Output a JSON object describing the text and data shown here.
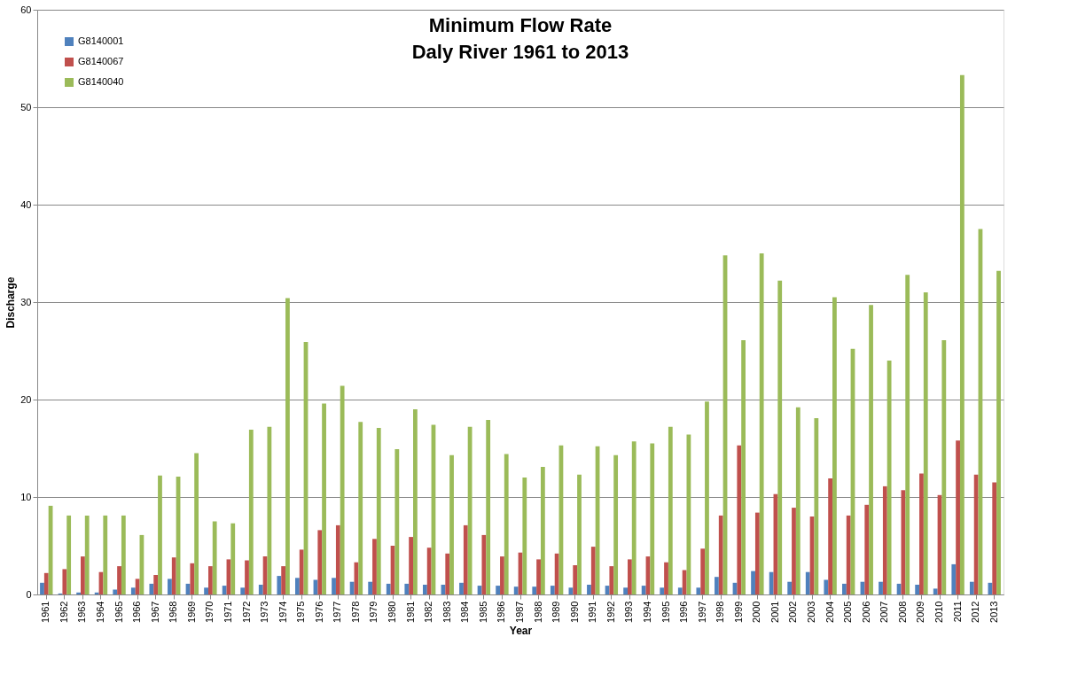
{
  "chart_data": {
    "type": "bar",
    "title": "Minimum Flow Rate\nDaly River 1961 to 2013",
    "xlabel": "Year",
    "ylabel": "Discharge",
    "categories": [
      "1961",
      "1962",
      "1963",
      "1964",
      "1965",
      "1966",
      "1967",
      "1968",
      "1969",
      "1970",
      "1971",
      "1972",
      "1973",
      "1974",
      "1975",
      "1976",
      "1977",
      "1978",
      "1979",
      "1980",
      "1981",
      "1982",
      "1983",
      "1984",
      "1985",
      "1986",
      "1987",
      "1988",
      "1989",
      "1990",
      "1991",
      "1992",
      "1993",
      "1994",
      "1995",
      "1996",
      "1997",
      "1998",
      "1999",
      "2000",
      "2001",
      "2002",
      "2003",
      "2004",
      "2005",
      "2006",
      "2007",
      "2008",
      "2009",
      "2010",
      "2011",
      "2012",
      "2013"
    ],
    "series": [
      {
        "name": "G8140001",
        "color": "#4f81bd",
        "values": [
          1.2,
          0.1,
          0.2,
          0.2,
          0.5,
          0.7,
          1.1,
          1.6,
          1.1,
          0.7,
          0.9,
          0.7,
          1.0,
          1.9,
          1.7,
          1.5,
          1.7,
          1.3,
          1.3,
          1.1,
          1.1,
          1.0,
          1.0,
          1.2,
          0.9,
          0.9,
          0.8,
          0.8,
          0.9,
          0.7,
          1.0,
          0.9,
          0.7,
          0.9,
          0.7,
          0.7,
          0.7,
          1.8,
          1.2,
          2.4,
          2.3,
          1.3,
          2.3,
          1.5,
          1.1,
          1.3,
          1.3,
          1.1,
          1.0,
          0.6,
          3.1,
          1.3,
          1.2
        ]
      },
      {
        "name": "G8140067",
        "color": "#c0504d",
        "values": [
          2.2,
          2.6,
          3.9,
          2.3,
          2.9,
          1.6,
          2.0,
          3.8,
          3.2,
          2.9,
          3.6,
          3.5,
          3.9,
          2.9,
          4.6,
          6.6,
          7.1,
          3.3,
          5.7,
          5.0,
          5.9,
          4.8,
          4.2,
          7.1,
          6.1,
          3.9,
          4.3,
          3.6,
          4.2,
          3.0,
          4.9,
          2.9,
          3.6,
          3.9,
          3.3,
          2.5,
          4.7,
          8.1,
          15.3,
          8.4,
          10.3,
          8.9,
          8.0,
          11.9,
          8.1,
          9.2,
          11.1,
          10.7,
          12.4,
          10.2,
          15.8,
          12.3,
          11.5
        ]
      },
      {
        "name": "G8140040",
        "color": "#9bbb59",
        "values": [
          9.1,
          8.1,
          8.1,
          8.1,
          8.1,
          6.1,
          12.2,
          12.1,
          14.5,
          7.5,
          7.3,
          16.9,
          17.2,
          30.4,
          25.9,
          19.6,
          21.4,
          17.7,
          17.1,
          14.9,
          19.0,
          17.4,
          14.3,
          17.2,
          17.9,
          14.4,
          12.0,
          13.1,
          15.3,
          12.3,
          15.2,
          14.3,
          15.7,
          15.5,
          17.2,
          16.4,
          19.8,
          34.8,
          26.1,
          35.0,
          32.2,
          19.2,
          18.1,
          30.5,
          25.2,
          29.7,
          24.0,
          32.8,
          31.0,
          26.1,
          53.3,
          37.5,
          33.2
        ]
      }
    ],
    "ylim": [
      0,
      60
    ],
    "yticks": [
      0,
      10,
      20,
      30,
      40,
      50,
      60
    ],
    "grid": "y",
    "legend": "top left"
  }
}
